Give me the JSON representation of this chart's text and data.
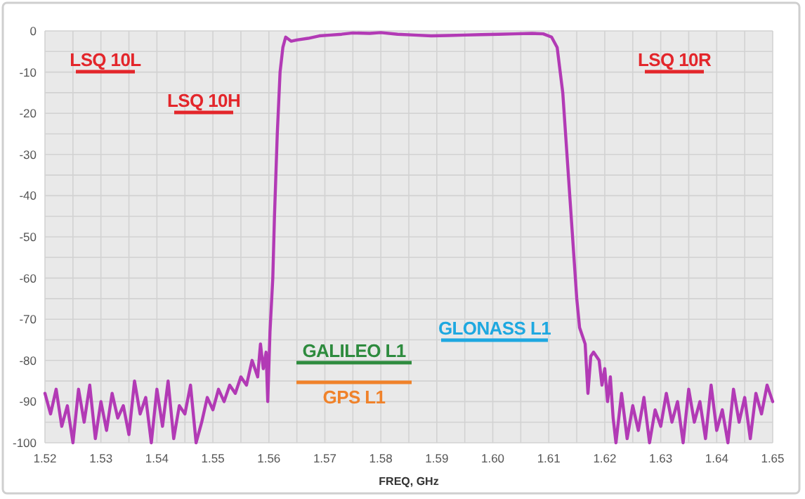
{
  "chart_data": {
    "type": "line",
    "xlabel": "FREQ, GHz",
    "xlim": [
      1.52,
      1.65
    ],
    "xticks": [
      {
        "value": 1.52,
        "label": "1.52"
      },
      {
        "value": 1.525,
        "label": null
      },
      {
        "value": 1.53,
        "label": "1.53"
      },
      {
        "value": 1.535,
        "label": null
      },
      {
        "value": 1.54,
        "label": "1.54"
      },
      {
        "value": 1.545,
        "label": null
      },
      {
        "value": 1.55,
        "label": "1.55"
      },
      {
        "value": 1.555,
        "label": null
      },
      {
        "value": 1.56,
        "label": "1.56"
      },
      {
        "value": 1.565,
        "label": null
      },
      {
        "value": 1.57,
        "label": "1.57"
      },
      {
        "value": 1.575,
        "label": null
      },
      {
        "value": 1.58,
        "label": "1.58"
      },
      {
        "value": 1.585,
        "label": null
      },
      {
        "value": 1.59,
        "label": "1.59"
      },
      {
        "value": 1.595,
        "label": null
      },
      {
        "value": 1.6,
        "label": "1.60"
      },
      {
        "value": 1.605,
        "label": null
      },
      {
        "value": 1.61,
        "label": "1.61"
      },
      {
        "value": 1.615,
        "label": null
      },
      {
        "value": 1.62,
        "label": "1.62"
      },
      {
        "value": 1.625,
        "label": null
      },
      {
        "value": 1.63,
        "label": "1.63"
      },
      {
        "value": 1.635,
        "label": null
      },
      {
        "value": 1.64,
        "label": "1.64"
      },
      {
        "value": 1.645,
        "label": null
      },
      {
        "value": 1.65,
        "label": "1.65"
      }
    ],
    "ylim": [
      -100,
      0
    ],
    "yticks": [
      0,
      {
        "value": -5,
        "label": null
      },
      -10,
      {
        "value": -15,
        "label": null
      },
      -20,
      {
        "value": -25,
        "label": null
      },
      -30,
      {
        "value": -35,
        "label": null
      },
      -40,
      {
        "value": -45,
        "label": null
      },
      -50,
      {
        "value": -55,
        "label": null
      },
      -60,
      {
        "value": -65,
        "label": null
      },
      -70,
      {
        "value": -75,
        "label": null
      },
      -80,
      {
        "value": -85,
        "label": null
      },
      -90,
      {
        "value": -95,
        "label": null
      },
      -100
    ],
    "grid": true,
    "marker": "none",
    "line_style": "solid",
    "annotations": [
      "LSQ 10L",
      "LSQ 10H",
      "LSQ 10R",
      "GALILEO L1",
      "GPS L1",
      "GLONASS L1"
    ],
    "series": [
      {
        "color": "#b23ab5",
        "x": [
          1.52,
          1.521,
          1.522,
          1.523,
          1.524,
          1.525,
          1.526,
          1.527,
          1.528,
          1.529,
          1.53,
          1.531,
          1.532,
          1.533,
          1.534,
          1.535,
          1.536,
          1.537,
          1.538,
          1.539,
          1.54,
          1.541,
          1.542,
          1.543,
          1.544,
          1.545,
          1.546,
          1.547,
          1.548,
          1.549,
          1.55,
          1.551,
          1.552,
          1.553,
          1.554,
          1.555,
          1.556,
          1.557,
          1.558,
          1.5585,
          1.559,
          1.5595,
          1.5598,
          1.5602,
          1.5607,
          1.561,
          1.5615,
          1.562,
          1.5625,
          1.563,
          1.564,
          1.565,
          1.567,
          1.569,
          1.571,
          1.573,
          1.575,
          1.578,
          1.58,
          1.583,
          1.586,
          1.589,
          1.592,
          1.595,
          1.598,
          1.601,
          1.604,
          1.607,
          1.609,
          1.6105,
          1.6115,
          1.6125,
          1.6135,
          1.6145,
          1.615,
          1.6155,
          1.6165,
          1.617,
          1.6175,
          1.618,
          1.619,
          1.6195,
          1.62,
          1.6205,
          1.621,
          1.6215,
          1.622,
          1.623,
          1.624,
          1.625,
          1.626,
          1.627,
          1.628,
          1.629,
          1.63,
          1.631,
          1.632,
          1.633,
          1.634,
          1.635,
          1.636,
          1.637,
          1.638,
          1.639,
          1.64,
          1.641,
          1.642,
          1.643,
          1.644,
          1.645,
          1.646,
          1.647,
          1.648,
          1.649,
          1.65
        ],
        "values": [
          -88,
          -93,
          -87,
          -96,
          -91,
          -100,
          -87,
          -95,
          -86,
          -99,
          -90,
          -97,
          -88,
          -94,
          -91,
          -98,
          -85,
          -93,
          -89,
          -100,
          -87,
          -96,
          -85,
          -99,
          -91,
          -93,
          -86,
          -100,
          -95,
          -89,
          -92,
          -87,
          -90,
          -86,
          -88,
          -84,
          -86,
          -80,
          -84,
          -76,
          -82,
          -78,
          -90,
          -73,
          -60,
          -45,
          -25,
          -10,
          -4,
          -1.5,
          -2.5,
          -2.2,
          -1.8,
          -1.2,
          -1,
          -0.8,
          -0.5,
          -0.6,
          -0.4,
          -0.8,
          -1,
          -1.2,
          -1.1,
          -1,
          -0.9,
          -0.8,
          -0.7,
          -0.6,
          -0.7,
          -1.5,
          -4,
          -15,
          -35,
          -55,
          -65,
          -72,
          -76,
          -88,
          -79,
          -78,
          -80,
          -86,
          -82,
          -90,
          -84,
          -94,
          -100,
          -88,
          -99,
          -91,
          -97,
          -89,
          -100,
          -92,
          -96,
          -88,
          -95,
          -90,
          -100,
          -87,
          -95,
          -90,
          -99,
          -86,
          -97,
          -92,
          -100,
          -87,
          -95,
          -89,
          -99,
          -88,
          -93,
          -86,
          -90
        ]
      }
    ]
  }
}
